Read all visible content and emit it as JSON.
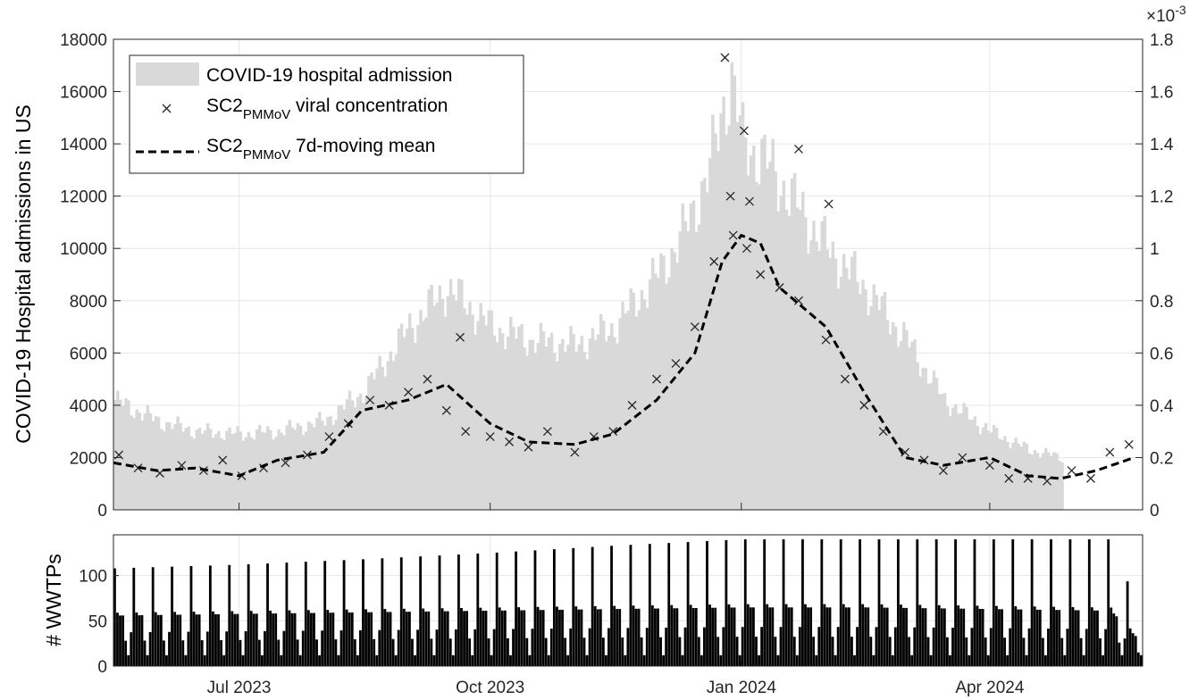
{
  "chart_data": [
    {
      "type": "bar",
      "note_type": "combined bar (area) + scatter + dashed line, dual y-axis",
      "x_axis": {
        "type": "date",
        "range": [
          "2023-05-16",
          "2024-05-27"
        ],
        "tick_labels": [
          "Jul 2023",
          "Oct 2023",
          "Jan 2024",
          "Apr 2024"
        ],
        "tick_dates": [
          "2023-07-01",
          "2023-10-01",
          "2024-01-01",
          "2024-04-01"
        ]
      },
      "y_left": {
        "label": "COVID-19 Hospital admissions in US",
        "ylim": [
          0,
          18000
        ],
        "ticks": [
          "0",
          "2000",
          "4000",
          "6000",
          "8000",
          "10000",
          "12000",
          "14000",
          "16000",
          "18000"
        ]
      },
      "y_right": {
        "ylim": [
          0,
          1.8
        ],
        "ticks": [
          "0",
          "0.2",
          "0.4",
          "0.6",
          "0.8",
          "1",
          "1.2",
          "1.4",
          "1.6",
          "1.8"
        ],
        "exponent": "10",
        "exponent_power": "-3",
        "exponent_prefix": "×"
      },
      "grid": true,
      "legend": {
        "placement": "top-left",
        "entries": [
          {
            "main": "COVID-19 hospital admission",
            "sub": "",
            "suffix": ""
          },
          {
            "main": "SC2",
            "sub": "PMMoV",
            "suffix": " viral concentration"
          },
          {
            "main": "SC2",
            "sub": "PMMoV",
            "suffix": " 7d-moving mean"
          }
        ]
      },
      "colors": {
        "admission_fill": "#d9d9d9",
        "marker": "#262626",
        "line": "#000000"
      },
      "series": [
        {
          "role": "bars",
          "axis": "left",
          "dates": [
            "2023-05-16",
            "2023-06-01",
            "2023-06-15",
            "2023-07-01",
            "2023-07-15",
            "2023-08-01",
            "2023-08-15",
            "2023-09-01",
            "2023-09-15",
            "2023-10-01",
            "2023-10-15",
            "2023-11-01",
            "2023-11-15",
            "2023-12-01",
            "2023-12-10",
            "2023-12-20",
            "2023-12-25",
            "2023-12-28",
            "2024-01-01",
            "2024-01-08",
            "2024-01-15",
            "2024-02-01",
            "2024-02-15",
            "2024-03-01",
            "2024-03-15",
            "2024-04-01",
            "2024-04-15",
            "2024-04-27"
          ],
          "values": [
            4200,
            3400,
            3000,
            2900,
            3000,
            3400,
            4500,
            7000,
            8500,
            7000,
            6500,
            6300,
            7000,
            9000,
            10500,
            13000,
            15500,
            16500,
            14000,
            13500,
            12500,
            10000,
            8500,
            6500,
            4200,
            3000,
            2300,
            2000
          ]
        },
        {
          "role": "scatter",
          "axis": "right",
          "dates": [
            "2023-05-18",
            "2023-05-25",
            "2023-06-02",
            "2023-06-10",
            "2023-06-18",
            "2023-06-25",
            "2023-07-02",
            "2023-07-10",
            "2023-07-18",
            "2023-07-26",
            "2023-08-03",
            "2023-08-10",
            "2023-08-18",
            "2023-08-25",
            "2023-09-01",
            "2023-09-08",
            "2023-09-15",
            "2023-09-22",
            "2023-10-01",
            "2023-10-08",
            "2023-10-15",
            "2023-10-22",
            "2023-11-01",
            "2023-11-08",
            "2023-11-15",
            "2023-11-22",
            "2023-12-01",
            "2023-12-08",
            "2023-12-15",
            "2023-12-22",
            "2023-12-29",
            "2024-01-03",
            "2024-01-08",
            "2024-01-15",
            "2024-01-22",
            "2024-02-01",
            "2024-02-08",
            "2024-02-15",
            "2024-02-22",
            "2024-03-01",
            "2024-03-08",
            "2024-03-15",
            "2024-03-22",
            "2024-04-01",
            "2024-04-08",
            "2024-04-15",
            "2024-04-22",
            "2024-05-01",
            "2024-05-08",
            "2024-05-15",
            "2024-05-22",
            "2023-12-26",
            "2024-01-02",
            "2023-09-20",
            "2024-01-22",
            "2023-12-28",
            "2024-01-04",
            "2024-02-02"
          ],
          "values": [
            0.21,
            0.16,
            0.14,
            0.17,
            0.15,
            0.19,
            0.13,
            0.16,
            0.18,
            0.21,
            0.28,
            0.33,
            0.42,
            0.4,
            0.45,
            0.5,
            0.38,
            0.3,
            0.28,
            0.26,
            0.24,
            0.3,
            0.22,
            0.28,
            0.3,
            0.4,
            0.5,
            0.56,
            0.7,
            0.95,
            1.05,
            1.0,
            0.9,
            0.85,
            0.8,
            0.65,
            0.5,
            0.4,
            0.3,
            0.22,
            0.19,
            0.15,
            0.2,
            0.17,
            0.12,
            0.12,
            0.11,
            0.15,
            0.12,
            0.22,
            0.25,
            1.73,
            1.45,
            0.66,
            1.38,
            1.2,
            1.18,
            1.17
          ]
        },
        {
          "role": "line",
          "axis": "right",
          "dates": [
            "2023-05-16",
            "2023-06-01",
            "2023-06-15",
            "2023-07-01",
            "2023-07-15",
            "2023-08-01",
            "2023-08-15",
            "2023-09-01",
            "2023-09-15",
            "2023-10-01",
            "2023-10-15",
            "2023-11-01",
            "2023-11-15",
            "2023-12-01",
            "2023-12-15",
            "2023-12-25",
            "2024-01-01",
            "2024-01-08",
            "2024-01-15",
            "2024-02-01",
            "2024-02-15",
            "2024-03-01",
            "2024-03-15",
            "2024-04-01",
            "2024-04-15",
            "2024-04-27",
            "2024-05-10",
            "2024-05-24"
          ],
          "values": [
            0.18,
            0.15,
            0.16,
            0.13,
            0.19,
            0.22,
            0.38,
            0.42,
            0.48,
            0.33,
            0.26,
            0.25,
            0.29,
            0.42,
            0.6,
            0.95,
            1.05,
            1.02,
            0.85,
            0.7,
            0.45,
            0.2,
            0.17,
            0.2,
            0.13,
            0.12,
            0.15,
            0.2
          ]
        }
      ]
    },
    {
      "type": "bar",
      "x_axis": {
        "type": "date",
        "range": [
          "2023-05-16",
          "2024-05-27"
        ],
        "tick_labels": [
          "Jul 2023",
          "Oct 2023",
          "Jan 2024",
          "Apr 2024"
        ]
      },
      "y_left": {
        "label": "# WWTPs",
        "ylim": [
          0,
          145
        ],
        "ticks": [
          "0",
          "50",
          "100"
        ]
      },
      "grid": true,
      "colors": {
        "bars": "#000000"
      },
      "series": [
        {
          "role": "weekly-pattern bars",
          "dates": [
            "2023-05-16",
            "2023-07-01",
            "2023-08-15",
            "2023-10-01",
            "2023-11-15",
            "2024-01-01",
            "2024-02-15",
            "2024-04-01",
            "2024-05-15",
            "2024-05-26"
          ],
          "peak_values": [
            108,
            112,
            118,
            125,
            133,
            140,
            140,
            140,
            140,
            55
          ],
          "mid_values": [
            62,
            64,
            66,
            68,
            70,
            72,
            72,
            70,
            68,
            30
          ]
        }
      ]
    }
  ]
}
